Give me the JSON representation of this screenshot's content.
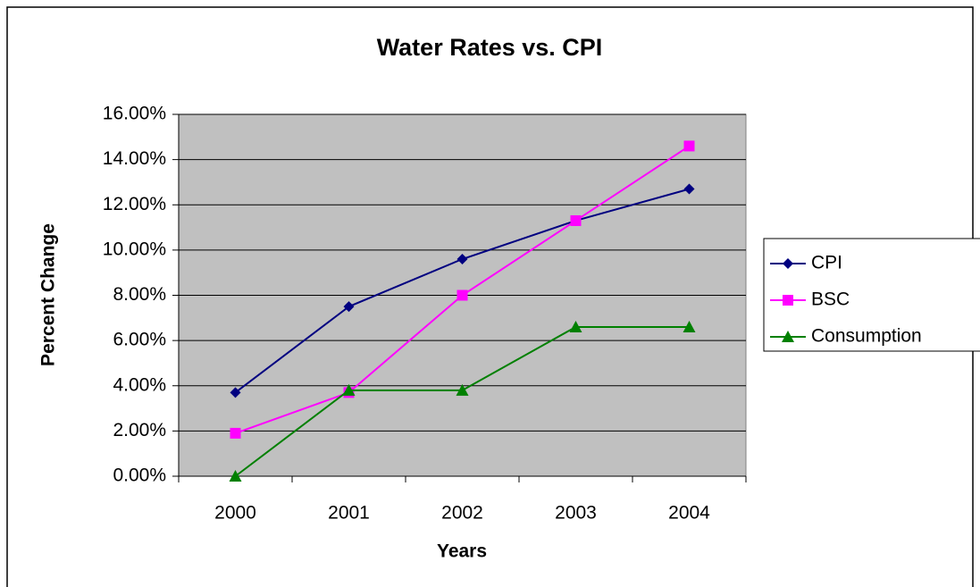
{
  "chart_data": {
    "type": "line",
    "title": "Water Rates vs. CPI",
    "xlabel": "Years",
    "ylabel": "Percent Change",
    "categories": [
      "2000",
      "2001",
      "2002",
      "2003",
      "2004"
    ],
    "series": [
      {
        "name": "CPI",
        "color": "#000080",
        "marker": "diamond",
        "values": [
          3.7,
          7.5,
          9.6,
          11.3,
          12.7
        ]
      },
      {
        "name": "BSC",
        "color": "#ff00ff",
        "marker": "square",
        "values": [
          1.9,
          3.7,
          8.0,
          11.3,
          14.6
        ]
      },
      {
        "name": "Consumption",
        "color": "#008000",
        "marker": "triangle",
        "values": [
          0,
          3.8,
          3.8,
          6.6,
          6.6
        ]
      }
    ],
    "ylim": [
      0,
      16
    ],
    "yticks": [
      {
        "value": 0,
        "label": "0.00%"
      },
      {
        "value": 2,
        "label": "2.00%"
      },
      {
        "value": 4,
        "label": "4.00%"
      },
      {
        "value": 6,
        "label": "6.00%"
      },
      {
        "value": 8,
        "label": "8.00%"
      },
      {
        "value": 10,
        "label": "10.00%"
      },
      {
        "value": 12,
        "label": "12.00%"
      },
      {
        "value": 14,
        "label": "14.00%"
      },
      {
        "value": 16,
        "label": "16.00%"
      }
    ],
    "grid": true,
    "legend": "right"
  }
}
